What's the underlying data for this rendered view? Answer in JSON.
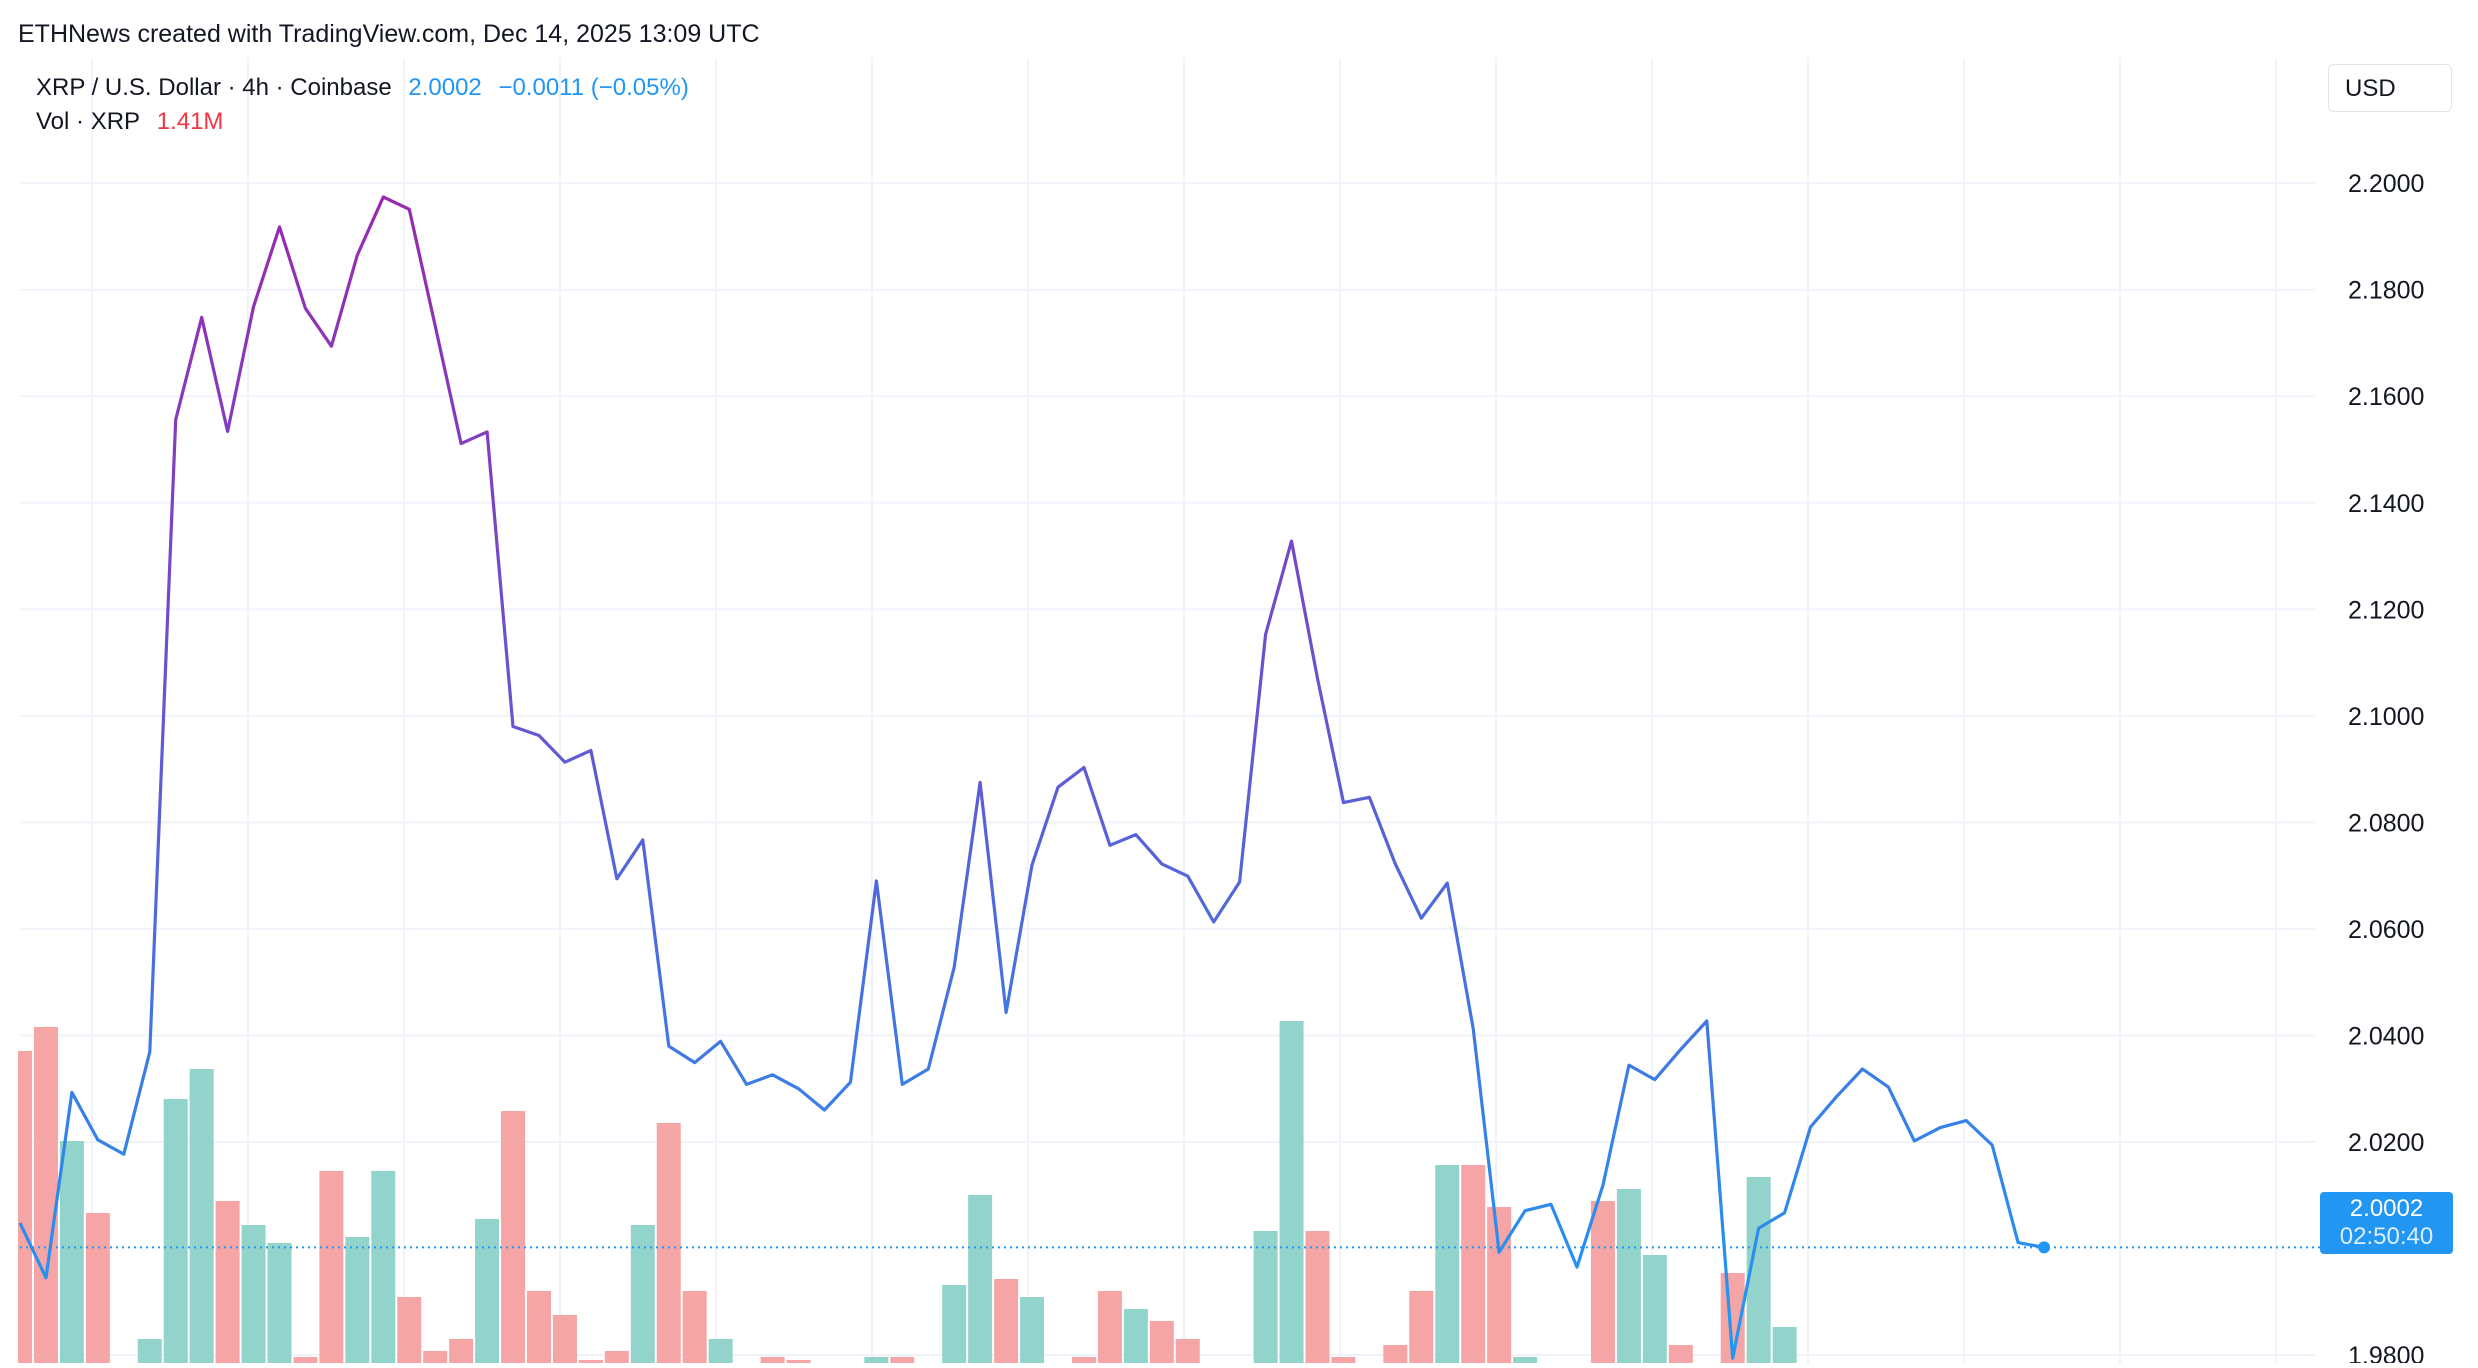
{
  "header": {
    "attribution": "ETHNews created with TradingView.com, Dec 14, 2025 13:09 UTC"
  },
  "legend": {
    "symbol": "XRP / U.S. Dollar · 4h · Coinbase",
    "last_price": "2.0002",
    "change": "−0.0011 (−0.05%)",
    "volume_label": "Vol · XRP",
    "volume_value": "1.41M"
  },
  "currency_button": "USD",
  "price_badge": {
    "price": "2.0002",
    "countdown": "02:50:40"
  },
  "colors": {
    "line_start": "#2196f3",
    "line_peak": "#9c27b0",
    "volume_up": "#92d3cb",
    "volume_down": "#f5a5a5",
    "grid": "#f0f3fa",
    "last_price_line": "#2196f3"
  },
  "chart_data": {
    "type": "line",
    "title": "XRP / U.S. Dollar · 4h · Coinbase",
    "y_axis_ticks": [
      "2.2000",
      "2.1800",
      "2.1600",
      "2.1400",
      "2.1200",
      "2.1000",
      "2.0800",
      "2.0600",
      "2.0400",
      "2.0200",
      "1.9800"
    ],
    "ylim": [
      1.9785,
      2.2235
    ],
    "last_value": 2.0002,
    "grid": true,
    "price_series": {
      "name": "XRP / U.S. Dollar",
      "values": [
        2.0048,
        1.9945,
        2.0293,
        2.0204,
        2.0177,
        2.0369,
        2.1556,
        2.1748,
        2.1534,
        2.1768,
        2.1918,
        2.1765,
        2.1694,
        2.1865,
        2.1974,
        2.1951,
        2.1732,
        2.1511,
        2.1533,
        2.098,
        2.0963,
        2.0913,
        2.0935,
        2.0694,
        2.0767,
        2.038,
        2.0349,
        2.0389,
        2.0308,
        2.0326,
        2.03,
        2.026,
        2.0312,
        2.069,
        2.0308,
        2.0337,
        2.0528,
        2.0875,
        2.0443,
        2.072,
        2.0866,
        2.0903,
        2.0757,
        2.0777,
        2.0722,
        2.0699,
        2.0613,
        2.0688,
        2.1153,
        2.1328,
        2.107,
        2.0837,
        2.0847,
        2.0722,
        2.062,
        2.0686,
        2.0413,
        1.9993,
        2.0071,
        2.0083,
        1.9965,
        2.0119,
        2.0344,
        2.0317,
        2.0374,
        2.0427,
        1.9794,
        2.0038,
        2.0067,
        2.0228,
        2.0285,
        2.0337,
        2.0303,
        2.0202,
        2.0227,
        2.024,
        2.0194,
        2.0011,
        2.0002
      ]
    },
    "volume_series": {
      "name": "Vol · XRP",
      "values": [
        0.52,
        0.56,
        0.37,
        0.25,
        0,
        0.04,
        0.44,
        0.49,
        0.27,
        0.23,
        0.2,
        0.01,
        0.32,
        0.21,
        0.32,
        0.11,
        0.02,
        0.04,
        0.24,
        0.42,
        0.12,
        0.08,
        0.005,
        0.02,
        0.23,
        0.4,
        0.12,
        0.04,
        0,
        0.01,
        0.005,
        0,
        0,
        0.01,
        0.01,
        0,
        0.13,
        0.28,
        0.14,
        0.11,
        0,
        0.01,
        0.12,
        0.09,
        0.07,
        0.04,
        0,
        0,
        0.22,
        0.57,
        0.22,
        0.01,
        0,
        0.03,
        0.12,
        0.33,
        0.33,
        0.26,
        0.01,
        0,
        0,
        0.27,
        0.29,
        0.18,
        0.03,
        0,
        0.15,
        0.31,
        0.06,
        0,
        0,
        0,
        0,
        0,
        0,
        0,
        0,
        0,
        0
      ],
      "direction": [
        "down",
        "down",
        "up",
        "down",
        "up",
        "up",
        "up",
        "up",
        "down",
        "up",
        "up",
        "down",
        "down",
        "up",
        "up",
        "down",
        "down",
        "down",
        "up",
        "down",
        "down",
        "down",
        "down",
        "down",
        "up",
        "down",
        "down",
        "up",
        "down",
        "down",
        "down",
        "down",
        "up",
        "up",
        "down",
        "up",
        "up",
        "up",
        "down",
        "up",
        "up",
        "down",
        "down",
        "up",
        "down",
        "down",
        "up",
        "up",
        "up",
        "up",
        "down",
        "down",
        "up",
        "down",
        "down",
        "up",
        "down",
        "down",
        "up",
        "up",
        "down",
        "down",
        "up",
        "up",
        "down",
        "up",
        "down",
        "up",
        "up",
        "up",
        "up",
        "up",
        "down",
        "down",
        "up",
        "up",
        "down",
        "down",
        "down"
      ]
    }
  }
}
